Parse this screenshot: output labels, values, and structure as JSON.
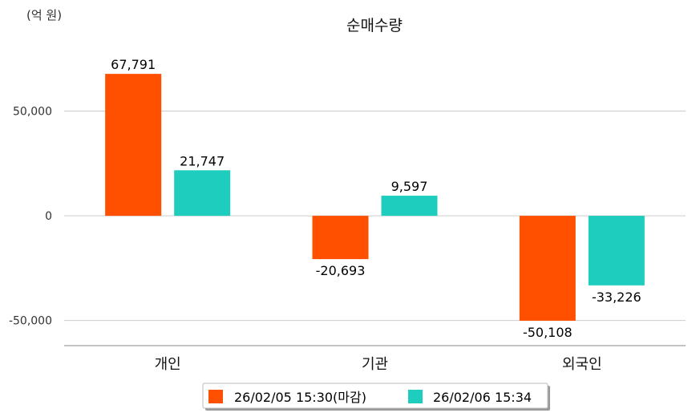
{
  "chart_data": {
    "type": "bar",
    "title": "순매수량",
    "unit_label": "(억 원)",
    "categories": [
      "개인",
      "기관",
      "외국인"
    ],
    "series": [
      {
        "name": "26/02/05 15:30(마감)",
        "values": [
          67791,
          -20693,
          -50108
        ]
      },
      {
        "name": "26/02/06 15:34",
        "values": [
          21747,
          9597,
          -33226
        ]
      }
    ],
    "data_labels": [
      [
        "67,791",
        "-20,693",
        "-50,108"
      ],
      [
        "21,747",
        "9,597",
        "-33,226"
      ]
    ],
    "yticks": [
      50000,
      0,
      -50000
    ],
    "ytick_labels": [
      "50,000",
      "0",
      "-50,000"
    ],
    "ylim": [
      -62000,
      82000
    ],
    "grid": true,
    "legend_position": "bottom",
    "colors": [
      "#ff5000",
      "#1ecdbd"
    ]
  }
}
